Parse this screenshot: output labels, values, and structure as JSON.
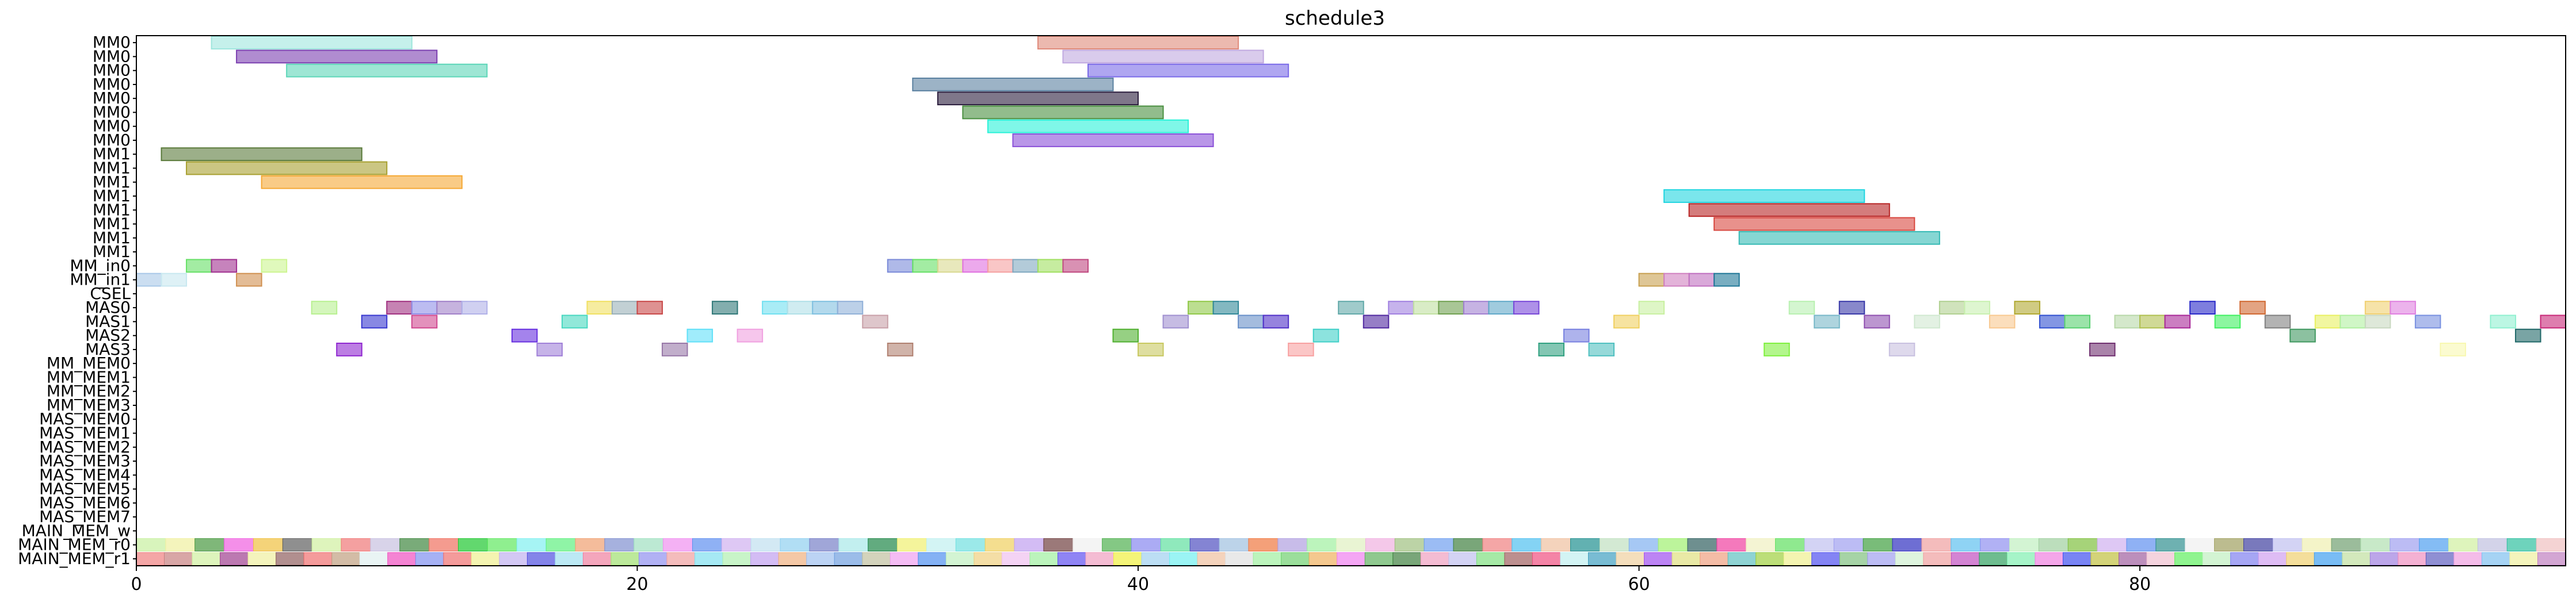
{
  "chart_data": {
    "type": "gantt",
    "title": "schedule3",
    "xlabel": "",
    "ylabel": "",
    "xlim": [
      0,
      97
    ],
    "xticks": [
      0,
      20,
      40,
      60,
      80
    ],
    "rows": [
      "MM0",
      "MM0",
      "MM0",
      "MM0",
      "MM0",
      "MM0",
      "MM0",
      "MM0",
      "MM1",
      "MM1",
      "MM1",
      "MM1",
      "MM1",
      "MM1",
      "MM1",
      "MM1",
      "MM_in0",
      "MM_in1",
      "CSEL",
      "MAS0",
      "MAS1",
      "MAS2",
      "MAS3",
      "MM_MEM0",
      "MM_MEM1",
      "MM_MEM2",
      "MM_MEM3",
      "MAS_MEM0",
      "MAS_MEM1",
      "MAS_MEM2",
      "MAS_MEM3",
      "MAS_MEM4",
      "MAS_MEM5",
      "MAS_MEM6",
      "MAS_MEM7",
      "MAIN_MEM_w",
      "MAIN_MEM_r0",
      "MAIN_MEM_r1"
    ],
    "tasks": [
      {
        "row": 0,
        "start": 3,
        "end": 11,
        "color": "#9fe6dd"
      },
      {
        "row": 0,
        "start": 36,
        "end": 44,
        "color": "#e08a7a"
      },
      {
        "row": 1,
        "start": 4,
        "end": 12,
        "color": "#7b3fb0"
      },
      {
        "row": 1,
        "start": 37,
        "end": 45,
        "color": "#c0a8e0"
      },
      {
        "row": 2,
        "start": 6,
        "end": 14,
        "color": "#5cd6b8"
      },
      {
        "row": 2,
        "start": 38,
        "end": 46,
        "color": "#7a6ae8"
      },
      {
        "row": 3,
        "start": 31,
        "end": 39,
        "color": "#5a80a0"
      },
      {
        "row": 4,
        "start": 32,
        "end": 40,
        "color": "#2a1c3c"
      },
      {
        "row": 5,
        "start": 33,
        "end": 41,
        "color": "#4a9040"
      },
      {
        "row": 6,
        "start": 34,
        "end": 42,
        "color": "#2af2d8"
      },
      {
        "row": 7,
        "start": 35,
        "end": 43,
        "color": "#8a50d8"
      },
      {
        "row": 8,
        "start": 1,
        "end": 9,
        "color": "#5a7a3a"
      },
      {
        "row": 9,
        "start": 2,
        "end": 10,
        "color": "#a8a030"
      },
      {
        "row": 10,
        "start": 5,
        "end": 13,
        "color": "#f5a835"
      },
      {
        "row": 11,
        "start": 61,
        "end": 69,
        "color": "#22d5e0"
      },
      {
        "row": 12,
        "start": 62,
        "end": 70,
        "color": "#b82525"
      },
      {
        "row": 13,
        "start": 63,
        "end": 71,
        "color": "#d84840"
      },
      {
        "row": 14,
        "start": 64,
        "end": 72,
        "color": "#35bab5"
      },
      {
        "row": 16,
        "start": 2,
        "end": 3,
        "color": "#66e066"
      },
      {
        "row": 16,
        "start": 3,
        "end": 4,
        "color": "#a03090"
      },
      {
        "row": 16,
        "start": 5,
        "end": 6,
        "color": "#ccf590"
      },
      {
        "row": 16,
        "start": 30,
        "end": 31,
        "color": "#7a8ad8"
      },
      {
        "row": 16,
        "start": 31,
        "end": 32,
        "color": "#66e066"
      },
      {
        "row": 16,
        "start": 32,
        "end": 33,
        "color": "#d8d890"
      },
      {
        "row": 16,
        "start": 33,
        "end": 34,
        "color": "#e070e0"
      },
      {
        "row": 16,
        "start": 34,
        "end": 35,
        "color": "#f5a0a0"
      },
      {
        "row": 16,
        "start": 35,
        "end": 36,
        "color": "#80a8c0"
      },
      {
        "row": 16,
        "start": 36,
        "end": 37,
        "color": "#a0e060"
      },
      {
        "row": 16,
        "start": 37,
        "end": 38,
        "color": "#c04880"
      },
      {
        "row": 17,
        "start": 0,
        "end": 1,
        "color": "#a8c8e8"
      },
      {
        "row": 17,
        "start": 1,
        "end": 2,
        "color": "#c8e8f0"
      },
      {
        "row": 17,
        "start": 4,
        "end": 5,
        "color": "#d09050"
      },
      {
        "row": 17,
        "start": 60,
        "end": 61,
        "color": "#c8a050"
      },
      {
        "row": 17,
        "start": 61,
        "end": 62,
        "color": "#d080c0"
      },
      {
        "row": 17,
        "start": 62,
        "end": 63,
        "color": "#c070c0"
      },
      {
        "row": 17,
        "start": 63,
        "end": 64,
        "color": "#207898"
      },
      {
        "row": 19,
        "start": 7,
        "end": 8,
        "color": "#b8f090"
      },
      {
        "row": 19,
        "start": 10,
        "end": 11,
        "color": "#a03080"
      },
      {
        "row": 19,
        "start": 11,
        "end": 12,
        "color": "#9090e8"
      },
      {
        "row": 19,
        "start": 12,
        "end": 13,
        "color": "#a080c8"
      },
      {
        "row": 19,
        "start": 13,
        "end": 14,
        "color": "#b0b0e8"
      },
      {
        "row": 19,
        "start": 18,
        "end": 19,
        "color": "#f0e060"
      },
      {
        "row": 19,
        "start": 19,
        "end": 20,
        "color": "#9ab0b8"
      },
      {
        "row": 19,
        "start": 20,
        "end": 21,
        "color": "#c84848"
      },
      {
        "row": 19,
        "start": 23,
        "end": 24,
        "color": "#307878"
      },
      {
        "row": 19,
        "start": 25,
        "end": 26,
        "color": "#70e0f0"
      },
      {
        "row": 19,
        "start": 26,
        "end": 27,
        "color": "#b0e0e8"
      },
      {
        "row": 19,
        "start": 27,
        "end": 28,
        "color": "#80c0e0"
      },
      {
        "row": 19,
        "start": 28,
        "end": 29,
        "color": "#90b0d8"
      },
      {
        "row": 19,
        "start": 42,
        "end": 43,
        "color": "#90c848"
      },
      {
        "row": 19,
        "start": 43,
        "end": 44,
        "color": "#308898"
      },
      {
        "row": 19,
        "start": 48,
        "end": 49,
        "color": "#60a8a8"
      },
      {
        "row": 19,
        "start": 50,
        "end": 51,
        "color": "#a080e0"
      },
      {
        "row": 19,
        "start": 51,
        "end": 52,
        "color": "#c0e0a0"
      },
      {
        "row": 19,
        "start": 52,
        "end": 53,
        "color": "#70a050"
      },
      {
        "row": 19,
        "start": 53,
        "end": 54,
        "color": "#a080d0"
      },
      {
        "row": 19,
        "start": 54,
        "end": 55,
        "color": "#60a8c8"
      },
      {
        "row": 19,
        "start": 55,
        "end": 56,
        "color": "#7848d8"
      },
      {
        "row": 19,
        "start": 60,
        "end": 61,
        "color": "#c8f0a0"
      },
      {
        "row": 19,
        "start": 66,
        "end": 67,
        "color": "#b8f0b0"
      },
      {
        "row": 19,
        "start": 68,
        "end": 69,
        "color": "#3838a8"
      },
      {
        "row": 19,
        "start": 72,
        "end": 73,
        "color": "#b0d090"
      },
      {
        "row": 19,
        "start": 73,
        "end": 74,
        "color": "#c8f0b0"
      },
      {
        "row": 19,
        "start": 75,
        "end": 76,
        "color": "#b0a830"
      },
      {
        "row": 19,
        "start": 82,
        "end": 83,
        "color": "#2828c8"
      },
      {
        "row": 19,
        "start": 84,
        "end": 85,
        "color": "#d06830"
      },
      {
        "row": 19,
        "start": 89,
        "end": 90,
        "color": "#f0d070"
      },
      {
        "row": 19,
        "start": 90,
        "end": 91,
        "color": "#e080e0"
      },
      {
        "row": 20,
        "start": 9,
        "end": 10,
        "color": "#3838d0"
      },
      {
        "row": 20,
        "start": 11,
        "end": 12,
        "color": "#d04890"
      },
      {
        "row": 20,
        "start": 17,
        "end": 18,
        "color": "#48d8c0"
      },
      {
        "row": 20,
        "start": 29,
        "end": 30,
        "color": "#c8a0a8"
      },
      {
        "row": 20,
        "start": 41,
        "end": 42,
        "color": "#a090d0"
      },
      {
        "row": 20,
        "start": 44,
        "end": 45,
        "color": "#6890c8"
      },
      {
        "row": 20,
        "start": 45,
        "end": 46,
        "color": "#5030c8"
      },
      {
        "row": 20,
        "start": 49,
        "end": 50,
        "color": "#5028a0"
      },
      {
        "row": 20,
        "start": 59,
        "end": 60,
        "color": "#f0d060"
      },
      {
        "row": 20,
        "start": 67,
        "end": 68,
        "color": "#78b8c8"
      },
      {
        "row": 20,
        "start": 69,
        "end": 70,
        "color": "#9050b0"
      },
      {
        "row": 20,
        "start": 71,
        "end": 72,
        "color": "#d0e8d0"
      },
      {
        "row": 20,
        "start": 74,
        "end": 75,
        "color": "#f8c890"
      },
      {
        "row": 20,
        "start": 76,
        "end": 77,
        "color": "#3050d0"
      },
      {
        "row": 20,
        "start": 77,
        "end": 78,
        "color": "#58d070"
      },
      {
        "row": 20,
        "start": 79,
        "end": 80,
        "color": "#b8d8a8"
      },
      {
        "row": 20,
        "start": 80,
        "end": 81,
        "color": "#b0c050"
      },
      {
        "row": 20,
        "start": 81,
        "end": 82,
        "color": "#a82898"
      },
      {
        "row": 20,
        "start": 83,
        "end": 84,
        "color": "#40f060"
      },
      {
        "row": 20,
        "start": 85,
        "end": 86,
        "color": "#808080"
      },
      {
        "row": 20,
        "start": 87,
        "end": 88,
        "color": "#e8f060"
      },
      {
        "row": 20,
        "start": 88,
        "end": 89,
        "color": "#b0f0a0"
      },
      {
        "row": 20,
        "start": 89,
        "end": 90,
        "color": "#c8d8c0"
      },
      {
        "row": 20,
        "start": 91,
        "end": 92,
        "color": "#7890e0"
      },
      {
        "row": 20,
        "start": 94,
        "end": 95,
        "color": "#90f0d0"
      },
      {
        "row": 20,
        "start": 96,
        "end": 97,
        "color": "#c82878"
      },
      {
        "row": 21,
        "start": 15,
        "end": 16,
        "color": "#6830e0"
      },
      {
        "row": 21,
        "start": 22,
        "end": 23,
        "color": "#60e0f8"
      },
      {
        "row": 21,
        "start": 24,
        "end": 25,
        "color": "#f0a0e0"
      },
      {
        "row": 21,
        "start": 39,
        "end": 40,
        "color": "#50b030"
      },
      {
        "row": 21,
        "start": 47,
        "end": 48,
        "color": "#40d0c8"
      },
      {
        "row": 21,
        "start": 57,
        "end": 58,
        "color": "#7880e0"
      },
      {
        "row": 21,
        "start": 86,
        "end": 87,
        "color": "#409860"
      },
      {
        "row": 21,
        "start": 95,
        "end": 96,
        "color": "#206868"
      },
      {
        "row": 22,
        "start": 8,
        "end": 9,
        "color": "#9028d0"
      },
      {
        "row": 22,
        "start": 16,
        "end": 17,
        "color": "#a080d8"
      },
      {
        "row": 22,
        "start": 21,
        "end": 22,
        "color": "#9878a8"
      },
      {
        "row": 22,
        "start": 30,
        "end": 31,
        "color": "#b08070"
      },
      {
        "row": 22,
        "start": 40,
        "end": 41,
        "color": "#c8c860"
      },
      {
        "row": 22,
        "start": 46,
        "end": 47,
        "color": "#f8a0a0"
      },
      {
        "row": 22,
        "start": 56,
        "end": 57,
        "color": "#30a080"
      },
      {
        "row": 22,
        "start": 58,
        "end": 59,
        "color": "#50c0c0"
      },
      {
        "row": 22,
        "start": 65,
        "end": 66,
        "color": "#80f040"
      },
      {
        "row": 22,
        "start": 70,
        "end": 71,
        "color": "#c8c0e0"
      },
      {
        "row": 22,
        "start": 78,
        "end": 79,
        "color": "#703070"
      },
      {
        "row": 22,
        "start": 92,
        "end": 93,
        "color": "#f8f8b0"
      }
    ],
    "mem_rows": {
      "MAIN_MEM_r0": [
        "#c8f0a0",
        "#f0f0a0",
        "#489840",
        "#f060e0",
        "#f0c040",
        "#606060",
        "#d0f0a0",
        "#f07878",
        "#c8c0e0",
        "#408840",
        "#f07060",
        "#20c830",
        "#60e860",
        "#80f0f0",
        "#60f080",
        "#f0a070",
        "#8090d0",
        "#a0e0c0",
        "#f090f0",
        "#6090f0",
        "#d0b0f0",
        "#c0e0f0",
        "#90d0f0",
        "#7880c8",
        "#a8e8e8",
        "#208848",
        "#f0f070",
        "#c0f0f0",
        "#70e0e0",
        "#f0d060",
        "#c0a0f0",
        "#704040",
        "#f0f0f0",
        "#50b050",
        "#8888f0",
        "#60e0a0",
        "#5050c0",
        "#a0c0e0",
        "#f07840",
        "#b0a0e0",
        "#a0f0a0",
        "#e0f0c0",
        "#f0b0e0",
        "#a0c080",
        "#70a0f0",
        "#408040",
        "#f08080",
        "#50c0f0",
        "#f0c0a0",
        "#209090",
        "#c0e0c0",
        "#80b0f0",
        "#a0f070",
        "#306060",
        "#f040a0",
        "#f0f0c0",
        "#60e060",
        "#c0c0f0",
        "#a0a0f0",
        "#40a040",
        "#3030c0",
        "#f0a0a0",
        "#60c0f0",
        "#9090f0",
        "#c0f0c0",
        "#a0d0a0",
        "#80c040",
        "#d0b0f0",
        "#6090f0",
        "#309090",
        "#f0f0f0",
        "#a0a060",
        "#4040a0",
        "#c0c0f0",
        "#f0f0b0",
        "#70a070",
        "#b0e0b0",
        "#a0a0f0",
        "#50a0f0",
        "#d0f0a0",
        "#c0c0e0",
        "#30c0a0",
        "#f0c0c0"
      ],
      "MAIN_MEM_r1": [
        "#f08080",
        "#c88080",
        "#d0f0a0",
        "#a04090",
        "#f0f0a0",
        "#906060",
        "#f07070",
        "#c0a080",
        "#e0f0f0",
        "#f050c0",
        "#8090f0",
        "#f07070",
        "#f0f090",
        "#c0b0f0",
        "#5050e0",
        "#a0e0f0",
        "#f080a0",
        "#a0e070",
        "#9090f0",
        "#f0a0a0",
        "#80e0f0",
        "#b0f0b0",
        "#c0a0f0",
        "#f0b080",
        "#a0c0f0",
        "#70a0e0",
        "#c0c0a0",
        "#f0a0f0",
        "#5090f0",
        "#c0f0c0",
        "#f0d080",
        "#f0c0f0",
        "#a0f0a0",
        "#6050f0",
        "#f0a0c0",
        "#f0f040",
        "#a0d0f0",
        "#70f0f0",
        "#f0c0a0",
        "#e0e0e0",
        "#a0f0a0",
        "#70d070",
        "#f0b060",
        "#f080f0",
        "#60b060",
        "#408040",
        "#f0a0c0",
        "#c0c0f0",
        "#80e080",
        "#a06060",
        "#f05080",
        "#c0f0f0",
        "#40a0c0",
        "#f0d0a0",
        "#a050f0",
        "#e0e080",
        "#f0a080",
        "#60c0c0",
        "#a0d040",
        "#f0f090",
        "#5050f0",
        "#80c080",
        "#a0a0f0",
        "#d0f0d0",
        "#f0a0a0",
        "#c050c0",
        "#30a060",
        "#80f0b0",
        "#f080e0",
        "#4050f0",
        "#c0c040",
        "#a060a0",
        "#f0c0d0",
        "#60f060",
        "#c0f0c0",
        "#8080f0",
        "#d0a0f0",
        "#f0d070",
        "#40a0f0",
        "#c0e0a0",
        "#a080e0",
        "#f090c0",
        "#6060c0",
        "#f0a0e0",
        "#80c0f0",
        "#f0f0a0",
        "#c080c0"
      ]
    }
  }
}
